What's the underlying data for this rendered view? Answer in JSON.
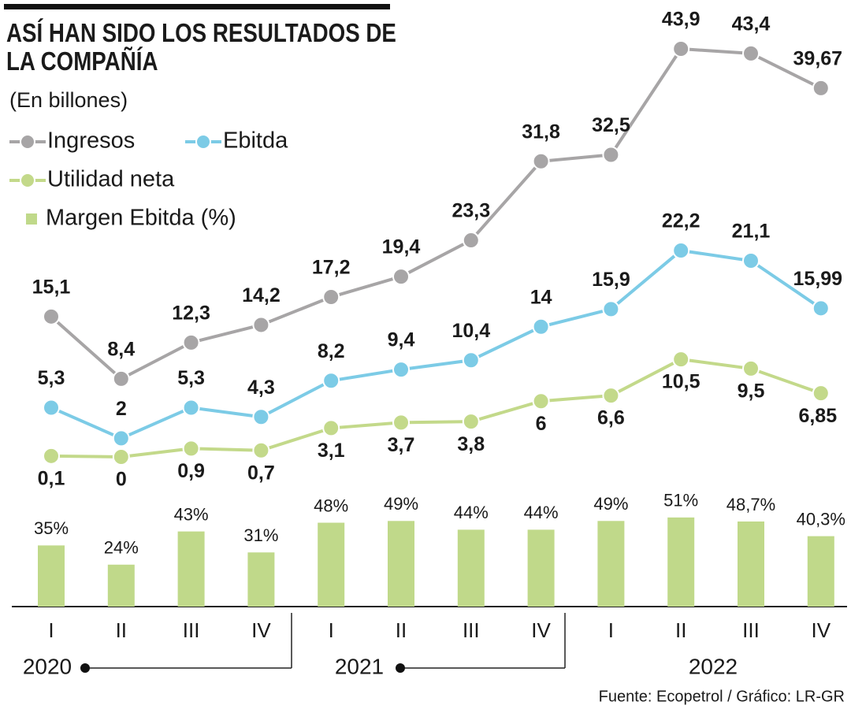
{
  "chart_data": [
    {
      "type": "line",
      "title": "ASÍ HAN SIDO LOS RESULTADOS DE LA COMPAÑÍA",
      "subtitle": "(En billones)",
      "source": "Fuente: Ecopetrol / Gráfico: LR-GR",
      "ylim": [
        0,
        45
      ],
      "series": [
        {
          "name": "Ingresos",
          "color": "#a7a5a6",
          "label_position": "above",
          "values": [
            15.1,
            8.4,
            12.3,
            14.2,
            17.2,
            19.4,
            23.3,
            31.8,
            32.5,
            43.9,
            43.4,
            39.67
          ],
          "value_labels": [
            "15,1",
            "8,4",
            "12,3",
            "14,2",
            "17,2",
            "19,4",
            "23,3",
            "31,8",
            "32,5",
            "43,9",
            "43,4",
            "39,67"
          ]
        },
        {
          "name": "Ebitda",
          "color": "#7ccbe6",
          "label_position": "above",
          "values": [
            5.3,
            2,
            5.3,
            4.3,
            8.2,
            9.4,
            10.4,
            14,
            15.9,
            22.2,
            21.1,
            15.99
          ],
          "value_labels": [
            "5,3",
            "2",
            "5,3",
            "4,3",
            "8,2",
            "9,4",
            "10,4",
            "14",
            "15,9",
            "22,2",
            "21,1",
            "15,99"
          ]
        },
        {
          "name": "Utilidad neta",
          "color": "#c3d98a",
          "label_position": "below",
          "values": [
            0.1,
            0,
            0.9,
            0.7,
            3.1,
            3.7,
            3.8,
            6,
            6.6,
            10.5,
            9.5,
            6.85
          ],
          "value_labels": [
            "0,1",
            "0",
            "0,9",
            "0,7",
            "3,1",
            "3,7",
            "3,8",
            "6",
            "6,6",
            "10,5",
            "9,5",
            "6,85"
          ]
        }
      ]
    },
    {
      "type": "bar",
      "categories": [
        "I",
        "II",
        "III",
        "IV",
        "I",
        "II",
        "III",
        "IV",
        "I",
        "II",
        "III",
        "IV"
      ],
      "groups": [
        "2020",
        "2021",
        "2022"
      ],
      "ylim": [
        0,
        55
      ],
      "series": [
        {
          "name": "Margen Ebitda (%)",
          "color": "#c0d98a",
          "values": [
            35,
            24,
            43,
            31,
            48,
            49,
            44,
            44,
            49,
            51,
            48.7,
            40.3
          ],
          "value_labels": [
            "35%",
            "24%",
            "43%",
            "31%",
            "48%",
            "49%",
            "44%",
            "44%",
            "49%",
            "51%",
            "48,7%",
            "40,3%"
          ]
        }
      ]
    }
  ]
}
